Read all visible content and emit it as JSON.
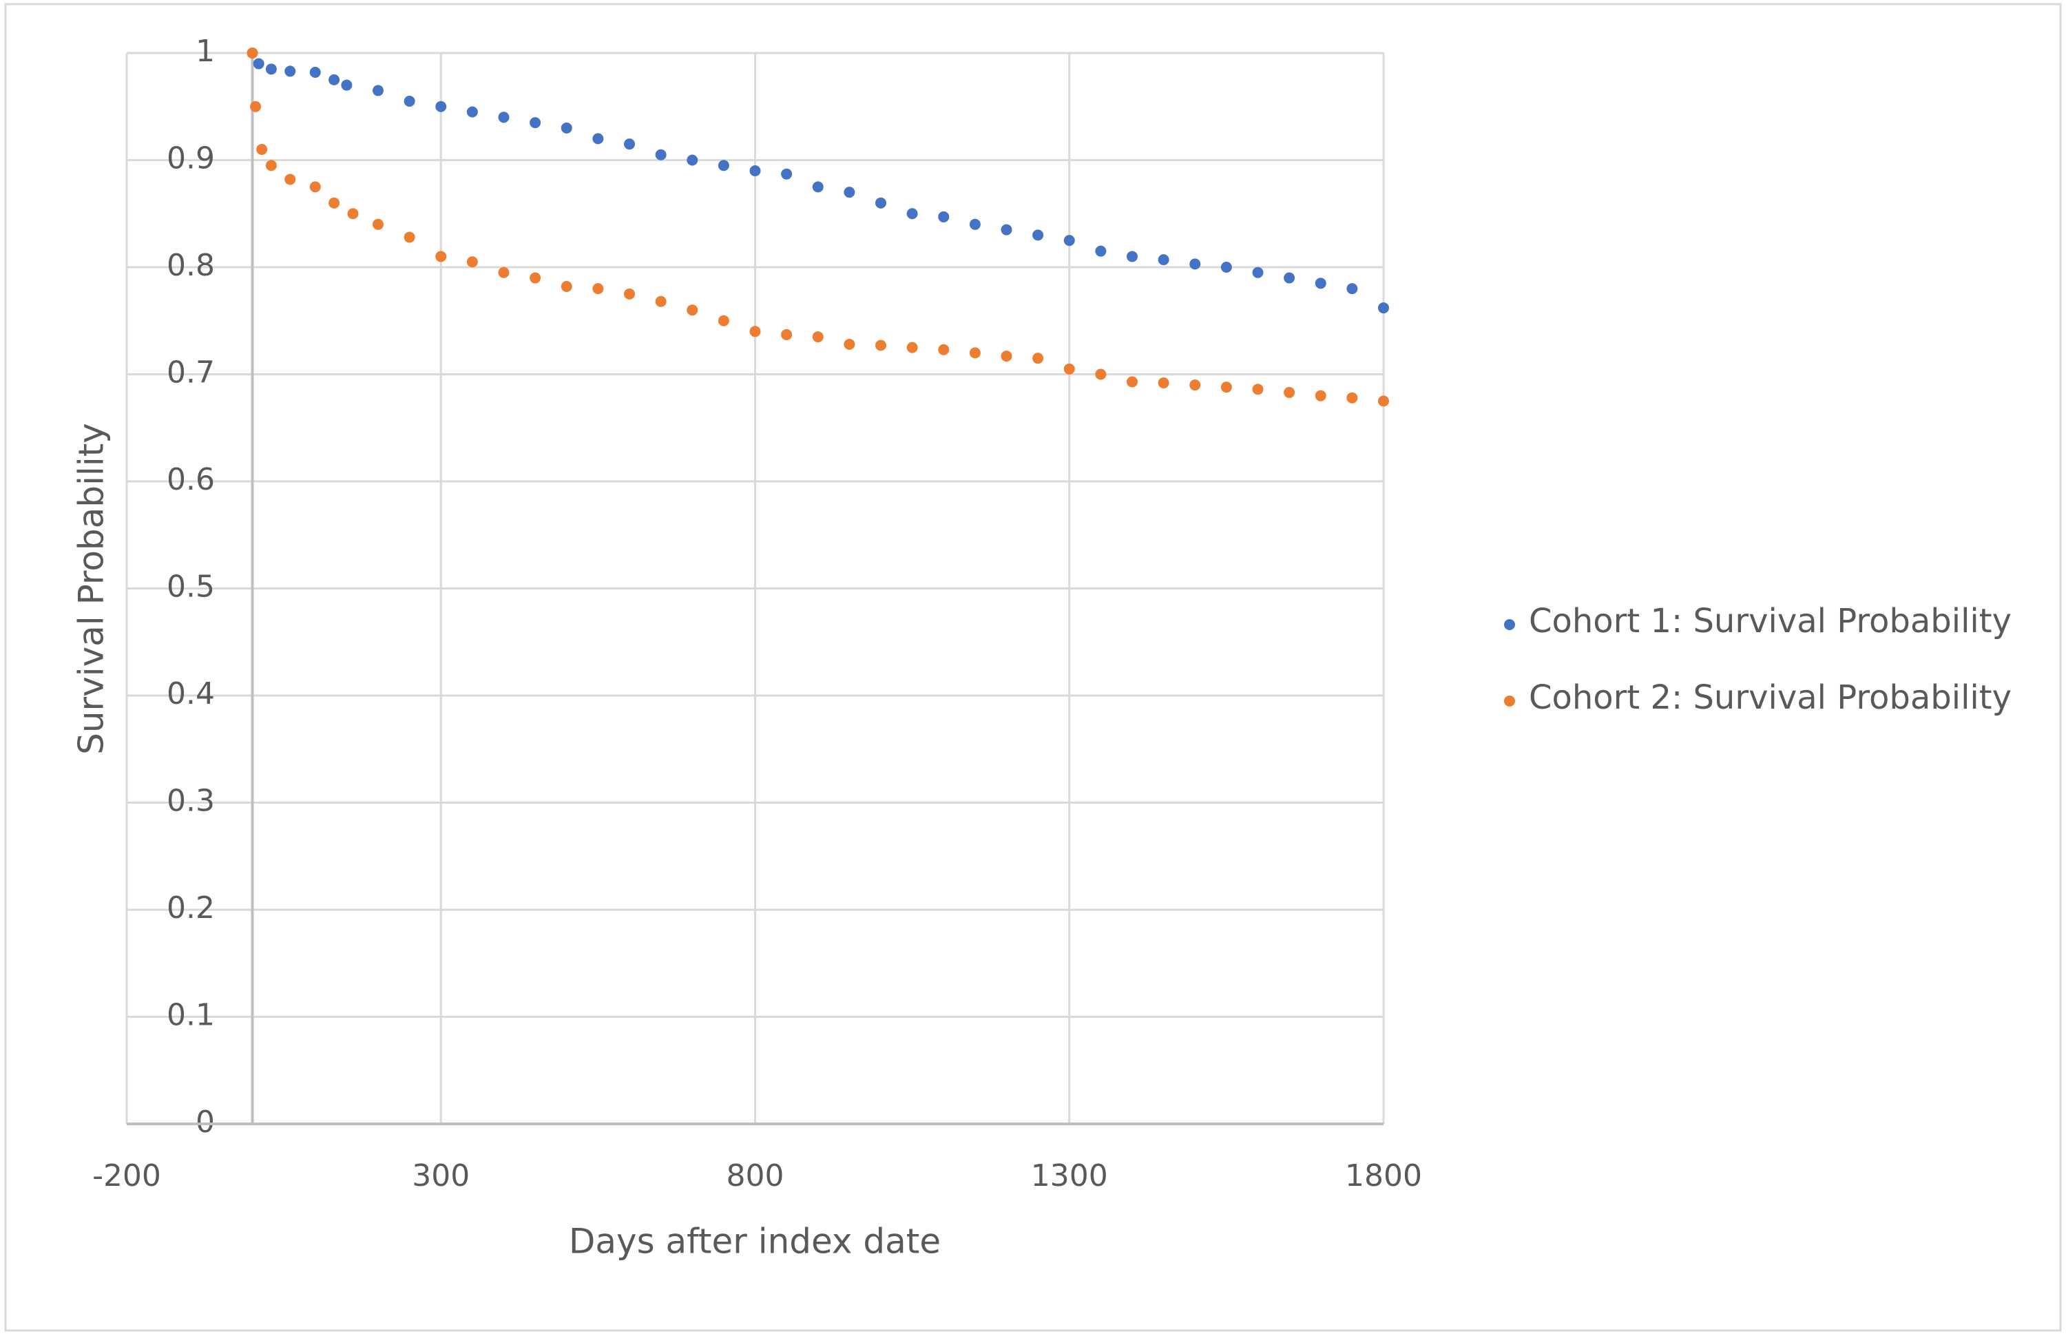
{
  "chart_data": {
    "type": "scatter",
    "x_label": "Days after index date",
    "y_label": "Survival Probability",
    "xlim": [
      -200,
      1800
    ],
    "xticks": [
      -200,
      300,
      800,
      1300,
      1800
    ],
    "ylim": [
      0,
      1
    ],
    "yticks": [
      0,
      0.1,
      0.2,
      0.3,
      0.4,
      0.5,
      0.6,
      0.7,
      0.8,
      0.9,
      1
    ],
    "grid": true,
    "legend": "right",
    "series": [
      {
        "name": "Cohort 1: Survival Probability",
        "color": "#4472c4",
        "x": [
          0,
          10,
          30,
          60,
          100,
          130,
          150,
          200,
          250,
          300,
          350,
          400,
          450,
          500,
          550,
          600,
          650,
          700,
          750,
          800,
          850,
          900,
          950,
          1000,
          1050,
          1100,
          1150,
          1200,
          1250,
          1300,
          1350,
          1400,
          1450,
          1500,
          1550,
          1600,
          1650,
          1700,
          1750,
          1800
        ],
        "values": [
          1,
          0.99,
          0.985,
          0.983,
          0.982,
          0.975,
          0.97,
          0.965,
          0.955,
          0.95,
          0.945,
          0.94,
          0.935,
          0.93,
          0.92,
          0.915,
          0.905,
          0.9,
          0.895,
          0.89,
          0.887,
          0.875,
          0.87,
          0.86,
          0.85,
          0.847,
          0.84,
          0.835,
          0.83,
          0.825,
          0.815,
          0.81,
          0.807,
          0.803,
          0.8,
          0.795,
          0.79,
          0.785,
          0.78,
          0.762
        ]
      },
      {
        "name": "Cohort 2: Survival Probability",
        "color": "#ed7d31",
        "x": [
          0,
          5,
          15,
          30,
          60,
          100,
          130,
          160,
          200,
          250,
          300,
          350,
          400,
          450,
          500,
          550,
          600,
          650,
          700,
          750,
          800,
          850,
          900,
          950,
          1000,
          1050,
          1100,
          1150,
          1200,
          1250,
          1300,
          1350,
          1400,
          1450,
          1500,
          1550,
          1600,
          1650,
          1700,
          1750,
          1800
        ],
        "values": [
          1,
          0.95,
          0.91,
          0.895,
          0.882,
          0.875,
          0.86,
          0.85,
          0.84,
          0.828,
          0.81,
          0.805,
          0.795,
          0.79,
          0.782,
          0.78,
          0.775,
          0.768,
          0.76,
          0.75,
          0.74,
          0.737,
          0.735,
          0.728,
          0.727,
          0.725,
          0.723,
          0.72,
          0.717,
          0.715,
          0.705,
          0.7,
          0.693,
          0.692,
          0.69,
          0.688,
          0.686,
          0.683,
          0.68,
          0.678,
          0.675
        ]
      }
    ]
  }
}
